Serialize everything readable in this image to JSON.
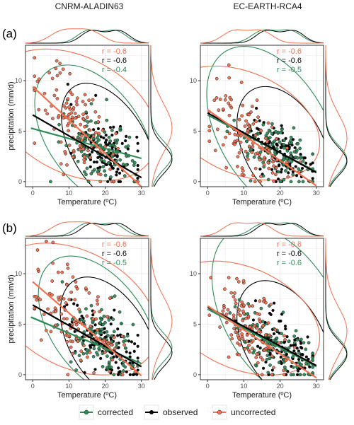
{
  "colors": {
    "corrected": "#2e8b57",
    "observed": "#000000",
    "uncorrected": "#f0704f",
    "panel_bg": "#ffffff",
    "grid": "#ebebeb",
    "border": "#333333"
  },
  "column_titles": [
    "CNRM-ALADIN63",
    "EC-EARTH-RCA4"
  ],
  "row_labels": [
    "(a)",
    "(b)"
  ],
  "legend": {
    "items": [
      {
        "key": "corrected",
        "label": "corrected"
      },
      {
        "key": "observed",
        "label": "observed"
      },
      {
        "key": "uncorrected",
        "label": "uncorrected"
      }
    ]
  },
  "chart_data": [
    {
      "type": "scatter",
      "row": "(a)",
      "column": "CNRM-ALADIN63",
      "xlabel": "Temperature (ºC)",
      "ylabel": "precipitation (mm/d)",
      "xlim": [
        -2,
        32
      ],
      "ylim": [
        -0.5,
        13.5
      ],
      "xticks": [
        0,
        10,
        20,
        30
      ],
      "yticks": [
        0,
        5,
        10
      ],
      "grid": true,
      "correlations": [
        {
          "series": "uncorrected",
          "label": "r = -0.6"
        },
        {
          "series": "observed",
          "label": "r = -0.6"
        },
        {
          "series": "corrected",
          "label": "r = -0.4"
        }
      ],
      "series": [
        {
          "name": "corrected",
          "x_center": 19.0,
          "y_center": 3.4,
          "x_spread": 5.2,
          "y_spread": 1.6,
          "slope": -0.14,
          "fit": [
            [
              -0.5,
              5.3
            ],
            [
              30,
              2.3
            ]
          ],
          "ellipse": {
            "cx": 17,
            "cy": 4.6,
            "rx": 13,
            "ry": 5.8,
            "angle": -35
          }
        },
        {
          "name": "observed",
          "x_center": 20.0,
          "y_center": 3.0,
          "x_spread": 5.0,
          "y_spread": 1.5,
          "slope": -0.22,
          "fit": [
            [
              0,
              6.6
            ],
            [
              30,
              0.4
            ]
          ],
          "ellipse": {
            "cx": 21,
            "cy": 3.6,
            "rx": 10.5,
            "ry": 5.0,
            "angle": -30
          }
        },
        {
          "name": "uncorrected",
          "x_center": 12.0,
          "y_center": 5.6,
          "x_spread": 6.0,
          "y_spread": 2.3,
          "slope": -0.33,
          "fit": [
            [
              0,
              9.4
            ],
            [
              30,
              -0.5
            ]
          ],
          "ellipse": {
            "cx": 11.5,
            "cy": 6.6,
            "rx": 16,
            "ry": 6.5,
            "angle": -62
          }
        }
      ]
    },
    {
      "type": "scatter",
      "row": "(a)",
      "column": "EC-EARTH-RCA4",
      "xlabel": "Temperature (ºC)",
      "ylabel": "",
      "xlim": [
        -2,
        32
      ],
      "ylim": [
        -0.5,
        13.5
      ],
      "xticks": [
        0,
        10,
        20,
        30
      ],
      "yticks": [
        0,
        5,
        10
      ],
      "grid": true,
      "correlations": [
        {
          "series": "uncorrected",
          "label": "r = -0.6"
        },
        {
          "series": "observed",
          "label": "r = -0.6"
        },
        {
          "series": "corrected",
          "label": "r = -0.5"
        }
      ],
      "series": [
        {
          "name": "corrected",
          "x_center": 19.0,
          "y_center": 3.0,
          "x_spread": 5.5,
          "y_spread": 1.6,
          "slope": -0.18,
          "fit": [
            [
              0,
              6.6
            ],
            [
              30,
              1.0
            ]
          ],
          "ellipse": {
            "cx": 18,
            "cy": 5.0,
            "rx": 15,
            "ry": 6.8,
            "angle": -30
          }
        },
        {
          "name": "observed",
          "x_center": 20.0,
          "y_center": 2.8,
          "x_spread": 5.0,
          "y_spread": 1.4,
          "slope": -0.19,
          "fit": [
            [
              0,
              6.8
            ],
            [
              30,
              0.9
            ]
          ],
          "ellipse": {
            "cx": 21,
            "cy": 3.4,
            "rx": 11,
            "ry": 4.8,
            "angle": -28
          }
        },
        {
          "name": "uncorrected",
          "x_center": 11.0,
          "y_center": 4.6,
          "x_spread": 5.5,
          "y_spread": 2.0,
          "slope": -0.25,
          "fit": [
            [
              0,
              7.1
            ],
            [
              30,
              -0.4
            ]
          ],
          "ellipse": {
            "cx": 9.5,
            "cy": 5.8,
            "rx": 14,
            "ry": 6.0,
            "angle": -66
          }
        }
      ]
    },
    {
      "type": "scatter",
      "row": "(b)",
      "column": "CNRM-ALADIN63",
      "xlabel": "Temperature (ºC)",
      "ylabel": "precipitation (mm/d)",
      "xlim": [
        -2,
        32
      ],
      "ylim": [
        -0.5,
        13.5
      ],
      "xticks": [
        0,
        10,
        20,
        30
      ],
      "yticks": [
        0,
        5,
        10
      ],
      "grid": true,
      "correlations": [
        {
          "series": "uncorrected",
          "label": "r = -0.6"
        },
        {
          "series": "observed",
          "label": "r = -0.6"
        },
        {
          "series": "corrected",
          "label": "r = -0.5"
        }
      ],
      "series": [
        {
          "name": "corrected",
          "x_center": 18.5,
          "y_center": 3.5,
          "x_spread": 5.2,
          "y_spread": 1.7,
          "slope": -0.15,
          "fit": [
            [
              -0.5,
              5.7
            ],
            [
              30,
              1.1
            ]
          ],
          "ellipse": {
            "cx": 18,
            "cy": 4.8,
            "rx": 13,
            "ry": 5.8,
            "angle": -35
          }
        },
        {
          "name": "observed",
          "x_center": 20.0,
          "y_center": 3.0,
          "x_spread": 5.0,
          "y_spread": 1.5,
          "slope": -0.2,
          "fit": [
            [
              0,
              6.9
            ],
            [
              30,
              0.8
            ]
          ],
          "ellipse": {
            "cx": 21,
            "cy": 3.5,
            "rx": 11,
            "ry": 5.0,
            "angle": -30
          }
        },
        {
          "name": "uncorrected",
          "x_center": 12.0,
          "y_center": 5.6,
          "x_spread": 6.0,
          "y_spread": 2.3,
          "slope": -0.31,
          "fit": [
            [
              0,
              9.2
            ],
            [
              30,
              -0.1
            ]
          ],
          "ellipse": {
            "cx": 11.5,
            "cy": 6.5,
            "rx": 16,
            "ry": 6.5,
            "angle": -62
          }
        }
      ]
    },
    {
      "type": "scatter",
      "row": "(b)",
      "column": "EC-EARTH-RCA4",
      "xlabel": "Temperature (ºC)",
      "ylabel": "",
      "xlim": [
        -2,
        32
      ],
      "ylim": [
        -0.5,
        13.5
      ],
      "xticks": [
        0,
        10,
        20,
        30
      ],
      "yticks": [
        0,
        5,
        10
      ],
      "grid": true,
      "correlations": [
        {
          "series": "uncorrected",
          "label": "r = -0.6"
        },
        {
          "series": "observed",
          "label": "r = -0.6"
        },
        {
          "series": "corrected",
          "label": "r = -0.6"
        }
      ],
      "series": [
        {
          "name": "corrected",
          "x_center": 19.0,
          "y_center": 3.0,
          "x_spread": 5.5,
          "y_spread": 1.6,
          "slope": -0.18,
          "fit": [
            [
              0,
              6.5
            ],
            [
              30,
              0.8
            ]
          ],
          "ellipse": {
            "cx": 20,
            "cy": 6.0,
            "rx": 15.5,
            "ry": 7.0,
            "angle": -30
          }
        },
        {
          "name": "observed",
          "x_center": 20.0,
          "y_center": 2.8,
          "x_spread": 5.0,
          "y_spread": 1.4,
          "slope": -0.19,
          "fit": [
            [
              0,
              6.7
            ],
            [
              30,
              0.9
            ]
          ],
          "ellipse": {
            "cx": 21,
            "cy": 3.3,
            "rx": 11,
            "ry": 4.8,
            "angle": -28
          }
        },
        {
          "name": "uncorrected",
          "x_center": 11.0,
          "y_center": 4.6,
          "x_spread": 5.5,
          "y_spread": 2.0,
          "slope": -0.24,
          "fit": [
            [
              0,
              6.8
            ],
            [
              30,
              -0.3
            ]
          ],
          "ellipse": {
            "cx": 9.5,
            "cy": 5.6,
            "rx": 14,
            "ry": 6.0,
            "angle": -66
          }
        }
      ]
    }
  ]
}
